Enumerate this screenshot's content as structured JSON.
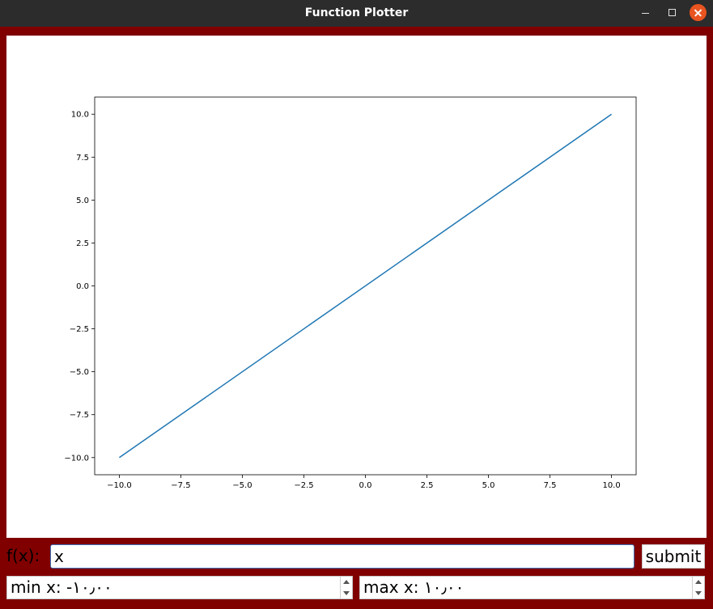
{
  "window": {
    "title": "Function Plotter"
  },
  "colors": {
    "frame": "#800000",
    "titlebar": "#2c2c2c",
    "close_button": "#e95420",
    "line": "#1f77b4"
  },
  "icons": {
    "minimize": "minimize-icon",
    "maximize": "maximize-icon",
    "close": "close-icon"
  },
  "controls": {
    "fx_label": "f(x):",
    "fx_value": "x",
    "submit_label": "submit",
    "min_x_text": "min x: -١٠٫٠٠",
    "max_x_text": "max x: ١٠٫٠٠"
  },
  "chart_data": {
    "type": "line",
    "title": "",
    "xlabel": "",
    "ylabel": "",
    "xlim": [
      -11,
      11
    ],
    "ylim": [
      -11,
      11
    ],
    "grid": false,
    "x_ticks": [
      -10,
      -7.5,
      -5,
      -2.5,
      0,
      2.5,
      5,
      7.5,
      10
    ],
    "x_tick_labels": [
      "−10.0",
      "−7.5",
      "−5.0",
      "−2.5",
      "0.0",
      "2.5",
      "5.0",
      "7.5",
      "10.0"
    ],
    "y_ticks": [
      10,
      7.5,
      5,
      2.5,
      0,
      -2.5,
      -5,
      -7.5,
      -10
    ],
    "y_tick_labels": [
      "10.0",
      "7.5",
      "5.0",
      "2.5",
      "0.0",
      "−2.5",
      "−5.0",
      "−7.5",
      "−10.0"
    ],
    "series": [
      {
        "x": [
          -10,
          10
        ],
        "y": [
          -10,
          10
        ]
      }
    ]
  }
}
